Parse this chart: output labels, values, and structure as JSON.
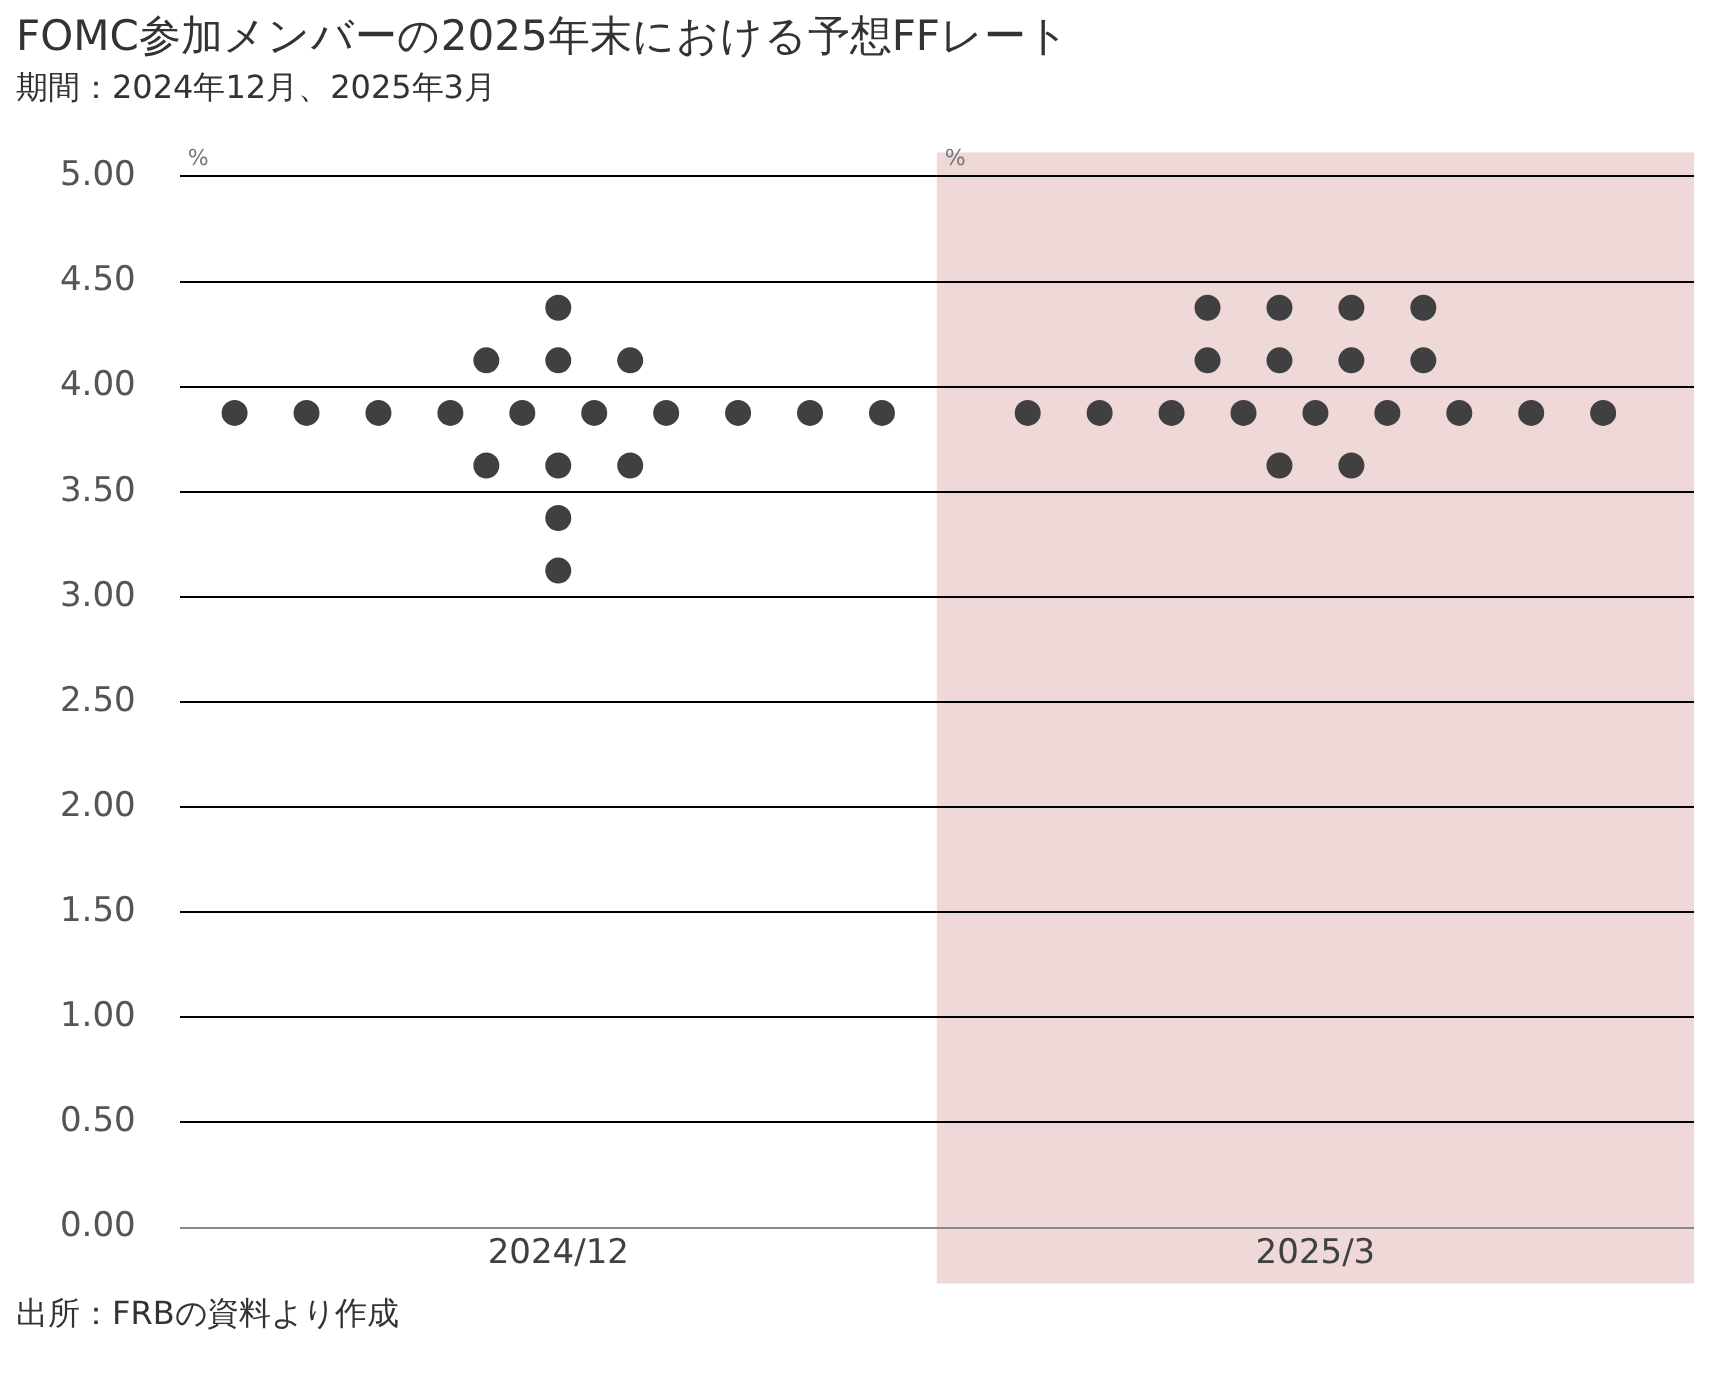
{
  "chart_data": {
    "type": "scatter",
    "title": "FOMC参加メンバーの2025年末における予想FFレート",
    "subtitle": "期間：2024年12月、2025年3月",
    "categories": [
      "2024/12",
      "2025/3"
    ],
    "series": [
      {
        "color": "#404040",
        "x": [
          "2024/12",
          "2024/12",
          "2024/12",
          "2024/12",
          "2024/12",
          "2024/12",
          "2024/12",
          "2024/12",
          "2024/12",
          "2024/12",
          "2024/12",
          "2024/12",
          "2024/12",
          "2024/12",
          "2024/12",
          "2024/12",
          "2024/12",
          "2024/12",
          "2024/12",
          "2025/3",
          "2025/3",
          "2025/3",
          "2025/3",
          "2025/3",
          "2025/3",
          "2025/3",
          "2025/3",
          "2025/3",
          "2025/3",
          "2025/3",
          "2025/3",
          "2025/3",
          "2025/3",
          "2025/3",
          "2025/3",
          "2025/3",
          "2025/3",
          "2025/3"
        ],
        "values": [
          4.375,
          4.125,
          4.125,
          4.125,
          3.875,
          3.875,
          3.875,
          3.875,
          3.875,
          3.875,
          3.875,
          3.875,
          3.875,
          3.875,
          3.625,
          3.625,
          3.625,
          3.375,
          3.125,
          4.375,
          4.375,
          4.375,
          4.375,
          4.125,
          4.125,
          4.125,
          4.125,
          3.875,
          3.875,
          3.875,
          3.875,
          3.875,
          3.875,
          3.875,
          3.875,
          3.875,
          3.625,
          3.625
        ]
      }
    ],
    "ylim": [
      0,
      5
    ],
    "yticks": [
      {
        "value": 0,
        "label": "0.00"
      },
      {
        "value": 0.5,
        "label": "0.50"
      },
      {
        "value": 1,
        "label": "1.00"
      },
      {
        "value": 1.5,
        "label": "1.50"
      },
      {
        "value": 2,
        "label": "2.00"
      },
      {
        "value": 2.5,
        "label": "2.50"
      },
      {
        "value": 3,
        "label": "3.00"
      },
      {
        "value": 3.5,
        "label": "3.50"
      },
      {
        "value": 4,
        "label": "4.00"
      },
      {
        "value": 4.5,
        "label": "4.50"
      },
      {
        "value": 5,
        "label": "5.00"
      }
    ],
    "grid": "y",
    "legend": false,
    "marker": "circle",
    "bands": [
      {
        "axis": "x",
        "from": "2025/3",
        "to": "2025/3",
        "color": "#eed8d8"
      }
    ],
    "annotations": [
      "%",
      "%",
      "出所：FRBの資料より作成"
    ]
  }
}
